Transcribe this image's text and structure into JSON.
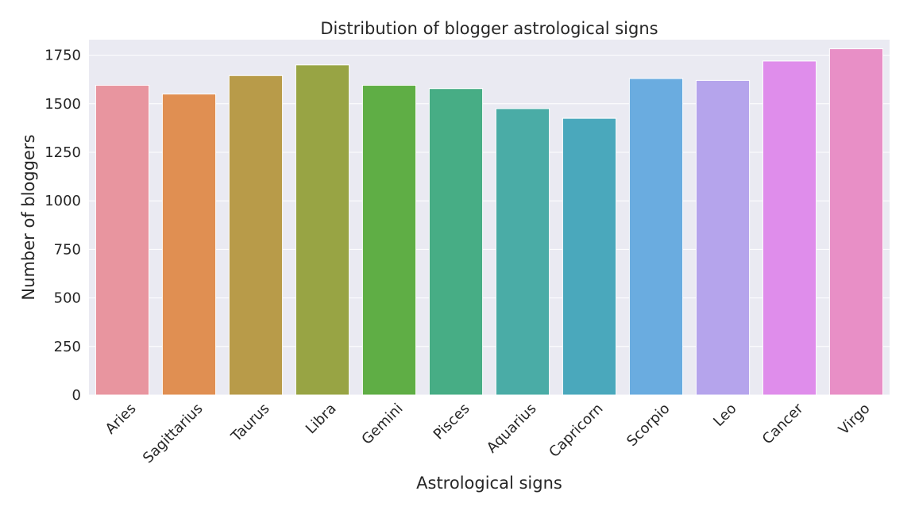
{
  "chart_data": {
    "type": "bar",
    "title": "Distribution of blogger astrological signs",
    "xlabel": "Astrological signs",
    "ylabel": "Number of bloggers",
    "categories": [
      "Aries",
      "Sagittarius",
      "Taurus",
      "Libra",
      "Gemini",
      "Pisces",
      "Aquarius",
      "Capricorn",
      "Scorpio",
      "Leo",
      "Cancer",
      "Virgo"
    ],
    "values": [
      1595,
      1550,
      1645,
      1700,
      1595,
      1578,
      1475,
      1425,
      1630,
      1620,
      1720,
      1783
    ],
    "colors": [
      "#e8959f",
      "#e08f52",
      "#b89b49",
      "#98a444",
      "#5fae45",
      "#47ad85",
      "#4aaca6",
      "#4aa8bc",
      "#6aace0",
      "#b5a4ec",
      "#df8deb",
      "#e88fc6"
    ],
    "ylim": [
      0,
      1830
    ],
    "yticks": [
      0,
      250,
      500,
      750,
      1000,
      1250,
      1500,
      1750
    ],
    "grid": true,
    "background": "#eaeaf2"
  }
}
